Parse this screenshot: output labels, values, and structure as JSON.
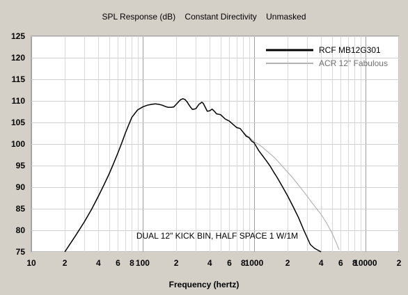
{
  "chart_data": {
    "type": "line",
    "title": "SPL Response (dB)    Constant Directivity    Unmasked",
    "xlabel": "Frequency (hertz)",
    "ylabel": "",
    "x_scale": "log",
    "xlim": [
      10,
      20000
    ],
    "ylim": [
      75,
      125
    ],
    "y_ticks": [
      75,
      80,
      85,
      90,
      95,
      100,
      105,
      110,
      115,
      120,
      125
    ],
    "x_ticks": [
      {
        "value": 10,
        "label": "10"
      },
      {
        "value": 20,
        "label": "2"
      },
      {
        "value": 40,
        "label": "4"
      },
      {
        "value": 60,
        "label": "6"
      },
      {
        "value": 80,
        "label": "8"
      },
      {
        "value": 100,
        "label": "100"
      },
      {
        "value": 200,
        "label": "2"
      },
      {
        "value": 400,
        "label": "4"
      },
      {
        "value": 600,
        "label": "6"
      },
      {
        "value": 800,
        "label": "8"
      },
      {
        "value": 1000,
        "label": "1000"
      },
      {
        "value": 2000,
        "label": "2"
      },
      {
        "value": 4000,
        "label": "4"
      },
      {
        "value": 6000,
        "label": "6"
      },
      {
        "value": 8000,
        "label": "8"
      },
      {
        "value": 10000,
        "label": "10000"
      },
      {
        "value": 20000,
        "label": "2"
      }
    ],
    "grid": true,
    "legend": "top-right",
    "annotation": "DUAL 12\" KICK BIN, HALF SPACE 1 W/1M",
    "series": [
      {
        "name": "RCF MB12G301",
        "color": "#000000",
        "x": [
          20,
          25,
          30,
          35,
          40,
          45,
          50,
          55,
          60,
          65,
          70,
          75,
          80,
          90,
          100,
          110,
          120,
          130,
          140,
          150,
          160,
          170,
          180,
          190,
          200,
          210,
          220,
          230,
          240,
          250,
          260,
          270,
          280,
          300,
          320,
          340,
          350,
          360,
          380,
          400,
          420,
          440,
          460,
          480,
          500,
          550,
          600,
          650,
          700,
          750,
          800,
          850,
          900,
          950,
          1000,
          1100,
          1200,
          1300,
          1400,
          1500,
          1600,
          1800,
          2000,
          2200,
          2500,
          2800,
          3000,
          3200,
          3500,
          3800,
          4000
        ],
        "y": [
          75.0,
          78.8,
          82.0,
          85.0,
          87.9,
          90.6,
          93.1,
          95.6,
          98.0,
          100.3,
          102.6,
          104.5,
          106.2,
          107.9,
          108.6,
          109.0,
          109.2,
          109.3,
          109.2,
          109.0,
          108.7,
          108.5,
          108.5,
          108.6,
          109.2,
          109.8,
          110.3,
          110.5,
          110.3,
          109.8,
          109.1,
          108.5,
          108.0,
          108.2,
          109.2,
          109.7,
          109.4,
          108.8,
          107.6,
          107.7,
          108.1,
          107.6,
          107.0,
          106.9,
          106.8,
          105.8,
          105.3,
          104.5,
          103.8,
          103.6,
          102.7,
          101.8,
          101.5,
          100.7,
          100.3,
          98.5,
          97.2,
          96.0,
          94.8,
          93.5,
          92.4,
          90.1,
          88.0,
          85.9,
          83.0,
          80.0,
          78.3,
          76.7,
          75.8,
          75.3,
          75.0
        ]
      },
      {
        "name": "ACR 12\" Fabulous",
        "color": "#b4b4b4",
        "x": [
          20,
          25,
          30,
          35,
          40,
          45,
          50,
          55,
          60,
          65,
          70,
          75,
          80,
          90,
          100,
          110,
          120,
          130,
          140,
          150,
          160,
          170,
          180,
          190,
          200,
          210,
          220,
          230,
          240,
          250,
          260,
          270,
          280,
          300,
          320,
          340,
          350,
          360,
          380,
          400,
          420,
          440,
          460,
          480,
          500,
          550,
          600,
          650,
          700,
          750,
          800,
          850,
          900,
          950,
          1000,
          1100,
          1200,
          1300,
          1400,
          1500,
          1600,
          1800,
          2000,
          2200,
          2500,
          2800,
          3000,
          3200,
          3500,
          3800,
          4000,
          4500,
          5000,
          5500,
          5800
        ],
        "y": [
          75.0,
          78.8,
          82.0,
          85.0,
          87.9,
          90.6,
          93.1,
          95.6,
          98.0,
          100.3,
          102.6,
          104.5,
          106.2,
          107.9,
          108.6,
          109.0,
          109.2,
          109.3,
          109.2,
          109.0,
          108.7,
          108.5,
          108.5,
          108.6,
          109.2,
          109.8,
          110.3,
          110.5,
          110.3,
          109.8,
          109.1,
          108.5,
          108.0,
          108.2,
          109.2,
          109.7,
          109.4,
          108.8,
          107.6,
          107.7,
          108.1,
          107.6,
          107.0,
          106.9,
          106.8,
          105.8,
          105.3,
          104.5,
          103.8,
          103.6,
          102.7,
          102.1,
          101.6,
          101.1,
          100.6,
          99.9,
          99.2,
          98.4,
          97.7,
          97.0,
          96.3,
          94.8,
          93.5,
          92.3,
          90.5,
          88.9,
          87.9,
          86.9,
          85.6,
          84.4,
          83.7,
          81.6,
          79.4,
          77.0,
          75.5
        ]
      }
    ]
  }
}
